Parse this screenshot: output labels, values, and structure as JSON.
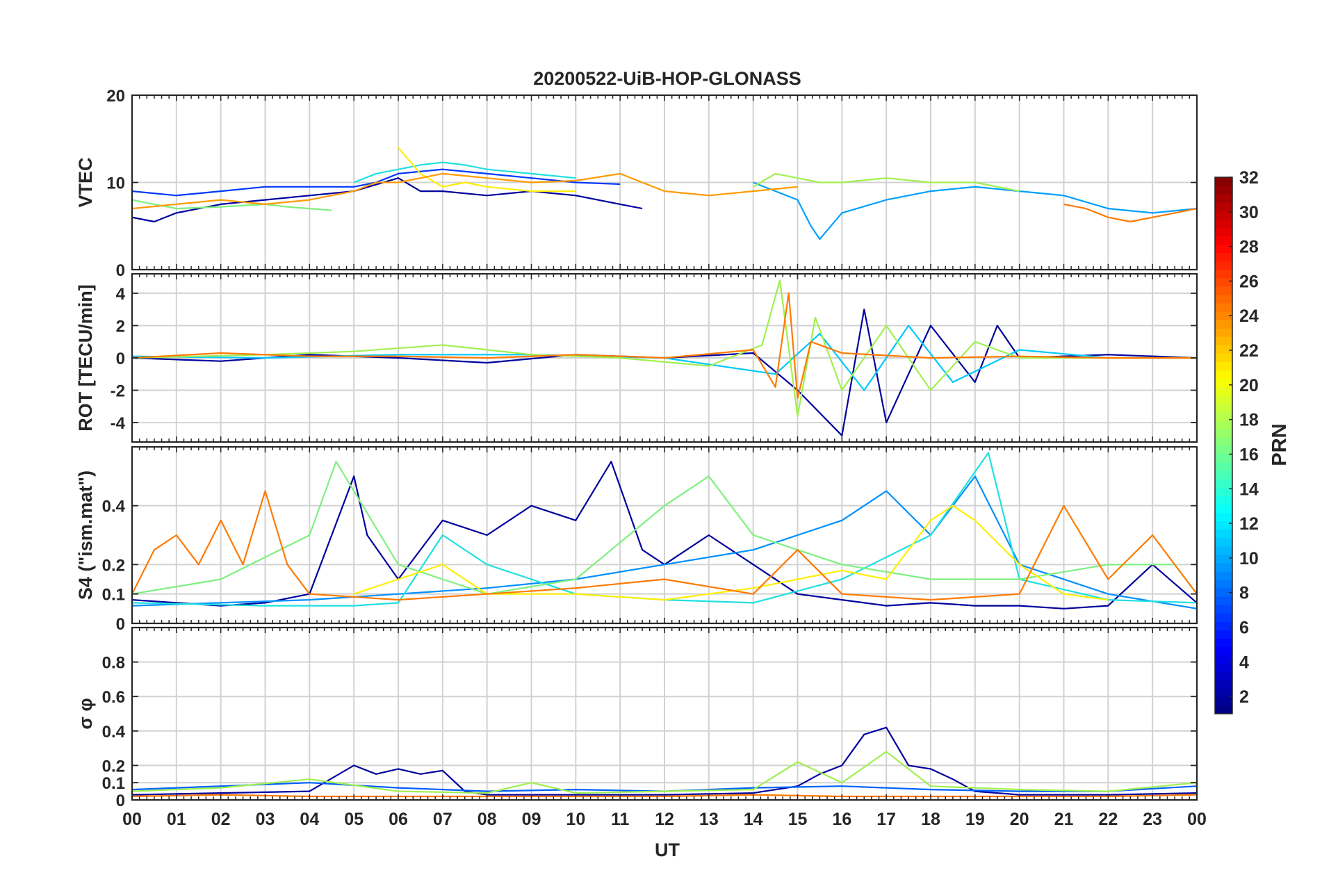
{
  "figure": {
    "title": "20200522-UiB-HOP-GLONASS",
    "x_label": "UT",
    "colorbar_label": "PRN"
  },
  "chart_data": [
    {
      "type": "line",
      "title": "20200522-UiB-HOP-GLONASS",
      "ylabel": "VTEC",
      "xlabel": "",
      "xlim": [
        0,
        24
      ],
      "ylim": [
        0,
        20
      ],
      "yticks": [
        0,
        10,
        20
      ],
      "grid": true,
      "series": [
        {
          "prn": 2,
          "color": "#00009e",
          "x": [
            0,
            0.5,
            1,
            2,
            3,
            4,
            5,
            6,
            6.5,
            7,
            8,
            9,
            10,
            11,
            11.5
          ],
          "y": [
            6,
            5.5,
            6.5,
            7.5,
            8,
            8.5,
            9,
            10.5,
            9,
            9,
            8.5,
            9,
            8.5,
            7.5,
            7
          ]
        },
        {
          "prn": 6,
          "color": "#0038ff",
          "x": [
            0,
            1,
            2,
            3,
            4,
            5,
            5.5,
            6,
            7,
            8,
            9,
            10,
            11
          ],
          "y": [
            9,
            8.5,
            9,
            9.5,
            9.5,
            9.5,
            10,
            11,
            11.5,
            11,
            10.5,
            10,
            9.8
          ]
        },
        {
          "prn": 10,
          "color": "#00a0ff",
          "x": [
            14,
            14.5,
            15,
            15.3,
            15.5,
            16,
            17,
            18,
            19,
            20,
            21,
            22,
            23,
            24
          ],
          "y": [
            10,
            9,
            8,
            5,
            3.5,
            6.5,
            8,
            9,
            9.5,
            9,
            8.5,
            7,
            6.5,
            7
          ]
        },
        {
          "prn": 13,
          "color": "#20e0e0",
          "x": [
            5,
            5.5,
            6,
            6.5,
            7,
            7.5,
            8,
            9,
            10
          ],
          "y": [
            10,
            11,
            11.5,
            12,
            12.3,
            12,
            11.5,
            11,
            10.5
          ]
        },
        {
          "prn": 16,
          "color": "#7ff07f",
          "x": [
            0,
            0.5,
            1,
            2,
            3,
            3.5,
            4,
            4.5
          ],
          "y": [
            8,
            7.5,
            7,
            7.2,
            7.5,
            7.2,
            7,
            6.8
          ]
        },
        {
          "prn": 17,
          "color": "#a0f04f",
          "x": [
            14,
            14.5,
            15,
            15.5,
            16,
            17,
            18,
            19,
            20
          ],
          "y": [
            9.5,
            11,
            10.5,
            10,
            10,
            10.5,
            10,
            10,
            9
          ]
        },
        {
          "prn": 20,
          "color": "#ffee00",
          "x": [
            6,
            6.5,
            7,
            7.5,
            8,
            9,
            10
          ],
          "y": [
            14,
            11,
            9.5,
            10,
            9.5,
            9,
            9
          ]
        },
        {
          "prn": 23,
          "color": "#ff9a00",
          "x": [
            0,
            1,
            2,
            3,
            4,
            5,
            5.5,
            6,
            7,
            8,
            9,
            10,
            11,
            12,
            13,
            14,
            15
          ],
          "y": [
            7,
            7.5,
            8,
            7.5,
            8,
            9,
            10,
            10,
            11,
            10.5,
            10,
            10.2,
            11,
            9,
            8.5,
            9,
            9.5
          ]
        },
        {
          "prn": 24,
          "color": "#ff7a00",
          "x": [
            21,
            21.5,
            22,
            22.5,
            23,
            23.5,
            24
          ],
          "y": [
            7.5,
            7,
            6,
            5.5,
            6,
            6.5,
            7
          ]
        }
      ]
    },
    {
      "type": "line",
      "ylabel": "ROT [TECU/min]",
      "xlabel": "",
      "xlim": [
        0,
        24
      ],
      "ylim": [
        -5.2,
        5.2
      ],
      "yticks": [
        -4,
        -2,
        0,
        2,
        4
      ],
      "grid": true,
      "series": [
        {
          "prn": 2,
          "color": "#00009e",
          "x": [
            0,
            2,
            4,
            6,
            8,
            10,
            12,
            14,
            15,
            16,
            16.5,
            17,
            18,
            19,
            19.5,
            20,
            22,
            24
          ],
          "y": [
            0,
            -0.2,
            0.2,
            0,
            -0.3,
            0.2,
            0,
            0.3,
            -2,
            -4.8,
            3,
            -4,
            2,
            -1.5,
            2,
            0,
            0.2,
            0
          ]
        },
        {
          "prn": 10,
          "color": "#00c8ff",
          "x": [
            0,
            3,
            6,
            9,
            12,
            14.5,
            15.5,
            16.5,
            17.5,
            18.5,
            20,
            22,
            24
          ],
          "y": [
            0.1,
            0,
            0.2,
            0.2,
            0,
            -1,
            1.5,
            -2,
            2,
            -1.5,
            0.5,
            0,
            0
          ]
        },
        {
          "prn": 17,
          "color": "#a0f04f",
          "x": [
            0,
            3,
            5,
            7,
            9,
            11,
            13,
            14.2,
            14.6,
            15,
            15.4,
            16,
            17,
            18,
            19,
            20,
            22,
            24
          ],
          "y": [
            0,
            0.2,
            0.4,
            0.8,
            0.2,
            0,
            -0.5,
            0.8,
            4.8,
            -3.6,
            2.5,
            -2,
            2,
            -2,
            1,
            0,
            0,
            0
          ]
        },
        {
          "prn": 23,
          "color": "#ff7a00",
          "x": [
            0,
            2,
            4,
            6,
            8,
            10,
            12,
            14,
            14.5,
            14.8,
            15,
            15.3,
            16,
            18,
            20,
            22,
            24
          ],
          "y": [
            0,
            0.3,
            0.1,
            0.1,
            0,
            0.2,
            0,
            0.5,
            -1.8,
            4,
            -2.5,
            1,
            0.3,
            0,
            0.1,
            0,
            0
          ]
        }
      ]
    },
    {
      "type": "line",
      "ylabel": "S4 (\"ism.mat\")",
      "xlabel": "",
      "xlim": [
        0,
        24
      ],
      "ylim": [
        0,
        0.6
      ],
      "yticks": [
        0,
        0.1,
        0.2,
        0.4
      ],
      "grid": true,
      "series": [
        {
          "prn": 2,
          "color": "#00009e",
          "x": [
            0,
            1,
            2,
            3,
            4,
            5,
            5.3,
            6,
            7,
            8,
            9,
            10,
            10.8,
            11.5,
            12,
            13,
            14,
            15,
            16,
            17,
            18,
            19,
            20,
            21,
            22,
            23,
            24
          ],
          "y": [
            0.08,
            0.07,
            0.06,
            0.07,
            0.1,
            0.5,
            0.3,
            0.15,
            0.35,
            0.3,
            0.4,
            0.35,
            0.55,
            0.25,
            0.2,
            0.3,
            0.2,
            0.1,
            0.08,
            0.06,
            0.07,
            0.06,
            0.06,
            0.05,
            0.06,
            0.2,
            0.07
          ]
        },
        {
          "prn": 10,
          "color": "#0090ff",
          "x": [
            0,
            2,
            4,
            6,
            8,
            10,
            12,
            14,
            15,
            16,
            17,
            18,
            19,
            20,
            22,
            24
          ],
          "y": [
            0.06,
            0.07,
            0.08,
            0.1,
            0.12,
            0.15,
            0.2,
            0.25,
            0.3,
            0.35,
            0.45,
            0.3,
            0.5,
            0.2,
            0.1,
            0.05
          ]
        },
        {
          "prn": 13,
          "color": "#20e0e0",
          "x": [
            0,
            3,
            5,
            6,
            7,
            8,
            10,
            12,
            14,
            16,
            18,
            19.3,
            20,
            22,
            24
          ],
          "y": [
            0.07,
            0.06,
            0.06,
            0.07,
            0.3,
            0.2,
            0.1,
            0.08,
            0.07,
            0.15,
            0.3,
            0.58,
            0.15,
            0.08,
            0.07
          ]
        },
        {
          "prn": 16,
          "color": "#7ff07f",
          "x": [
            0,
            2,
            4,
            4.6,
            6,
            8,
            10,
            12,
            13,
            14,
            16,
            18,
            20,
            22,
            23.5,
            24
          ],
          "y": [
            0.1,
            0.15,
            0.3,
            0.55,
            0.2,
            0.1,
            0.15,
            0.4,
            0.5,
            0.3,
            0.2,
            0.15,
            0.15,
            0.2,
            0.2,
            0.1
          ]
        },
        {
          "prn": 20,
          "color": "#ffee00",
          "x": [
            5,
            6,
            7,
            8,
            10,
            12,
            14,
            16,
            17,
            18,
            18.5,
            19,
            20,
            21,
            22
          ],
          "y": [
            0.1,
            0.15,
            0.2,
            0.1,
            0.1,
            0.08,
            0.12,
            0.18,
            0.15,
            0.35,
            0.4,
            0.35,
            0.2,
            0.1,
            0.08
          ]
        },
        {
          "prn": 23,
          "color": "#ff7a00",
          "x": [
            0,
            0.5,
            1,
            1.5,
            2,
            2.5,
            3,
            3.5,
            4,
            6,
            8,
            10,
            12,
            14,
            15,
            16,
            18,
            20,
            21,
            22,
            23,
            24
          ],
          "y": [
            0.1,
            0.25,
            0.3,
            0.2,
            0.35,
            0.2,
            0.45,
            0.2,
            0.1,
            0.08,
            0.1,
            0.12,
            0.15,
            0.1,
            0.25,
            0.1,
            0.08,
            0.1,
            0.4,
            0.15,
            0.3,
            0.1
          ]
        }
      ]
    },
    {
      "type": "line",
      "ylabel": "σ φ",
      "xlabel": "UT",
      "xlim": [
        0,
        24
      ],
      "ylim": [
        0,
        1
      ],
      "yticks": [
        0,
        0.1,
        0.2,
        0.4,
        0.6,
        0.8
      ],
      "grid": true,
      "series": [
        {
          "prn": 2,
          "color": "#00009e",
          "x": [
            0,
            2,
            4,
            5,
            5.5,
            6,
            6.5,
            7,
            7.5,
            8,
            10,
            12,
            14,
            15,
            15.5,
            16,
            16.5,
            17,
            17.5,
            18,
            18.5,
            19,
            20,
            22,
            24
          ],
          "y": [
            0.03,
            0.04,
            0.05,
            0.2,
            0.15,
            0.18,
            0.15,
            0.17,
            0.05,
            0.03,
            0.03,
            0.03,
            0.04,
            0.08,
            0.15,
            0.2,
            0.38,
            0.42,
            0.2,
            0.18,
            0.12,
            0.05,
            0.03,
            0.03,
            0.04
          ]
        },
        {
          "prn": 8,
          "color": "#0060ff",
          "x": [
            0,
            2,
            4,
            6,
            8,
            10,
            12,
            14,
            16,
            18,
            20,
            22,
            24
          ],
          "y": [
            0.06,
            0.08,
            0.1,
            0.07,
            0.05,
            0.06,
            0.05,
            0.07,
            0.08,
            0.06,
            0.05,
            0.05,
            0.08
          ]
        },
        {
          "prn": 17,
          "color": "#a0f04f",
          "x": [
            0,
            2,
            4,
            6,
            8,
            9,
            10,
            12,
            14,
            15,
            16,
            17,
            18,
            20,
            22,
            24
          ],
          "y": [
            0.05,
            0.07,
            0.12,
            0.05,
            0.04,
            0.1,
            0.04,
            0.05,
            0.06,
            0.22,
            0.1,
            0.28,
            0.08,
            0.06,
            0.05,
            0.1
          ]
        },
        {
          "prn": 23,
          "color": "#ff7a00",
          "x": [
            0,
            2,
            4,
            6,
            8,
            10,
            12,
            14,
            16,
            18,
            20,
            22,
            24
          ],
          "y": [
            0.02,
            0.03,
            0.02,
            0.02,
            0.02,
            0.02,
            0.02,
            0.03,
            0.02,
            0.02,
            0.02,
            0.02,
            0.03
          ]
        }
      ]
    }
  ],
  "x_axis": {
    "ticks": [
      0,
      1,
      2,
      3,
      4,
      5,
      6,
      7,
      8,
      9,
      10,
      11,
      12,
      13,
      14,
      15,
      16,
      17,
      18,
      19,
      20,
      21,
      22,
      23,
      24
    ],
    "tick_labels": [
      "00",
      "01",
      "02",
      "03",
      "04",
      "05",
      "06",
      "07",
      "08",
      "09",
      "10",
      "11",
      "12",
      "13",
      "14",
      "15",
      "16",
      "17",
      "18",
      "19",
      "20",
      "21",
      "22",
      "23",
      "00"
    ]
  },
  "colorbar": {
    "label": "PRN",
    "range": [
      1,
      32
    ],
    "ticks": [
      2,
      4,
      6,
      8,
      10,
      12,
      14,
      16,
      18,
      20,
      22,
      24,
      26,
      28,
      30,
      32
    ],
    "colormap": "jet"
  }
}
